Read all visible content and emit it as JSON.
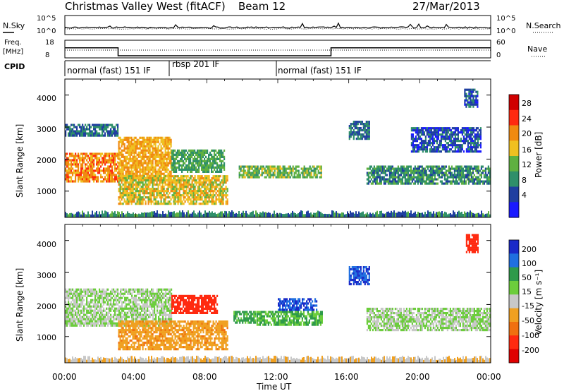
{
  "header": {
    "title": "Christmas Valley West (fitACF)",
    "beam": "Beam 12",
    "date": "27/Mar/2013"
  },
  "top_panel": {
    "left_label": "N.Sky",
    "left_ticks": [
      "10^5",
      "10^0"
    ],
    "right_ticks": [
      "10^5",
      "10^0"
    ],
    "right_label": "N.Search"
  },
  "freq_panel": {
    "left_label_line1": "Freq.",
    "left_label_line2": "[MHz]",
    "left_ticks": [
      "18",
      "8"
    ],
    "right_ticks": [
      "60",
      "0"
    ],
    "right_label": "Nave"
  },
  "cpid": {
    "label": "CPID",
    "segments": [
      {
        "text": "normal (fast) 151 IF",
        "start_h": 0,
        "end_h": 6
      },
      {
        "text": "rbsp 201 IF",
        "start_h": 6,
        "end_h": 12
      },
      {
        "text": "normal (fast) 151 IF",
        "start_h": 12,
        "end_h": 24
      }
    ]
  },
  "x_axis": {
    "label": "Time UT",
    "ticks": [
      "00:00",
      "04:00",
      "08:00",
      "12:00",
      "16:00",
      "20:00",
      "00:00"
    ]
  },
  "power_panel": {
    "ylabel": "Slant Range [km]",
    "yticks": [
      "1000",
      "2000",
      "3000",
      "4000"
    ],
    "colorbar_label": "Power [dB]",
    "colorbar_ticks": [
      "4",
      "8",
      "12",
      "16",
      "20",
      "24",
      "28"
    ],
    "colors": [
      "#1a1aff",
      "#1f3fa0",
      "#2f8f6a",
      "#5fb040",
      "#f0c020",
      "#f08a10",
      "#ff2a10",
      "#d00000"
    ]
  },
  "velocity_panel": {
    "ylabel": "Slant Range [km]",
    "yticks": [
      "1000",
      "2000",
      "3000",
      "4000"
    ],
    "colorbar_label": "Velocity [m s⁻¹]",
    "colorbar_ticks": [
      "200",
      "100",
      "50",
      "15",
      "-15",
      "-50",
      "-100",
      "-200"
    ],
    "colors": [
      "#1a2ac8",
      "#1f6fe0",
      "#2e9a4a",
      "#6ccd3c",
      "#c8c8c8",
      "#f0a020",
      "#f07010",
      "#ff2a10",
      "#e00000"
    ]
  },
  "chart_data": [
    {
      "type": "heatmap",
      "title": "Power",
      "xlabel": "Time UT",
      "ylabel": "Slant Range [km]",
      "xlim": [
        0,
        24
      ],
      "ylim": [
        180,
        4500
      ],
      "colorbar": {
        "label": "Power [dB]",
        "ticks": [
          4,
          8,
          12,
          16,
          20,
          24,
          28
        ]
      },
      "regions": [
        {
          "t0": 0.0,
          "t1": 3.0,
          "r0": 1300,
          "r1": 2200,
          "value": 24
        },
        {
          "t0": 0.0,
          "t1": 3.0,
          "r0": 2700,
          "r1": 3100,
          "value": 10
        },
        {
          "t0": 3.0,
          "t1": 6.0,
          "r0": 1300,
          "r1": 2700,
          "value": 22
        },
        {
          "t0": 3.0,
          "t1": 9.2,
          "r0": 600,
          "r1": 1500,
          "value": 20
        },
        {
          "t0": 6.0,
          "t1": 9.0,
          "r0": 1600,
          "r1": 2300,
          "value": 14
        },
        {
          "t0": 9.8,
          "t1": 14.5,
          "r0": 1400,
          "r1": 1800,
          "value": 16
        },
        {
          "t0": 16.0,
          "t1": 17.2,
          "r0": 2600,
          "r1": 3200,
          "value": 10
        },
        {
          "t0": 17.0,
          "t1": 24.0,
          "r0": 1200,
          "r1": 1800,
          "value": 12
        },
        {
          "t0": 19.5,
          "t1": 23.5,
          "r0": 2200,
          "r1": 3000,
          "value": 8
        },
        {
          "t0": 22.5,
          "t1": 23.3,
          "r0": 3600,
          "r1": 4200,
          "value": 8
        }
      ]
    },
    {
      "type": "heatmap",
      "title": "Velocity",
      "xlabel": "Time UT",
      "ylabel": "Slant Range [km]",
      "xlim": [
        0,
        24
      ],
      "ylim": [
        180,
        4500
      ],
      "colorbar": {
        "label": "Velocity [m s⁻¹]",
        "ticks": [
          200,
          100,
          50,
          15,
          -15,
          -50,
          -100,
          -200
        ]
      },
      "regions": [
        {
          "t0": 0.0,
          "t1": 6.0,
          "r0": 1300,
          "r1": 2500,
          "value": 0
        },
        {
          "t0": 3.0,
          "t1": 9.2,
          "r0": 600,
          "r1": 1500,
          "value": -60
        },
        {
          "t0": 6.0,
          "t1": 8.6,
          "r0": 1700,
          "r1": 2300,
          "value": -200
        },
        {
          "t0": 9.5,
          "t1": 10.8,
          "r0": 1400,
          "r1": 1800,
          "value": 40
        },
        {
          "t0": 10.8,
          "t1": 14.5,
          "r0": 1350,
          "r1": 1800,
          "value": 30
        },
        {
          "t0": 12.0,
          "t1": 14.2,
          "r0": 1800,
          "r1": 2200,
          "value": 150
        },
        {
          "t0": 16.0,
          "t1": 17.2,
          "r0": 2600,
          "r1": 3200,
          "value": 150
        },
        {
          "t0": 17.0,
          "t1": 24.0,
          "r0": 1200,
          "r1": 1900,
          "value": 0
        },
        {
          "t0": 22.6,
          "t1": 23.3,
          "r0": 3600,
          "r1": 4200,
          "value": -200
        }
      ]
    },
    {
      "type": "line",
      "title": "Freq.",
      "ylabel": "[MHz]",
      "ylim": [
        8,
        18
      ],
      "x": [
        0,
        3.0,
        3.0,
        15.0,
        15.0,
        24
      ],
      "values": [
        14,
        14,
        8.5,
        8.5,
        14,
        14
      ]
    }
  ]
}
